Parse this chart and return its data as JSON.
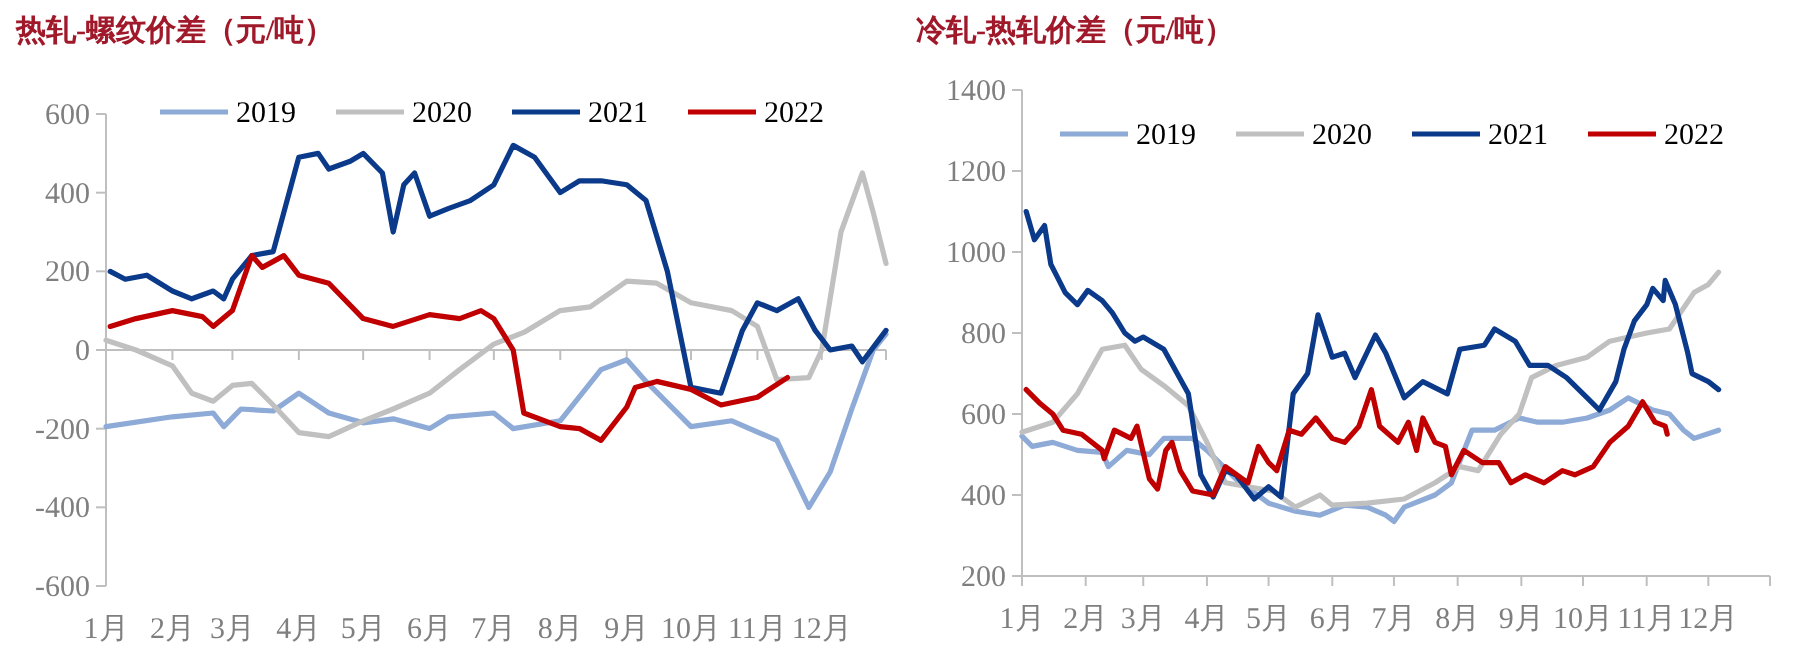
{
  "chart_data": [
    {
      "type": "line",
      "title": "热轧-螺纹价差（元/吨）",
      "legend": "top",
      "xlim": [
        "--01-01",
        "--12-31"
      ],
      "ylim": [
        -600,
        600
      ],
      "yticks": [
        -600,
        -400,
        -200,
        0,
        200,
        400,
        600
      ],
      "xticks": [
        {
          "value": "--01-01",
          "label": "1月"
        },
        {
          "value": "--02-01",
          "label": "2月"
        },
        {
          "value": "--03-01",
          "label": "3月"
        },
        {
          "value": "--04-01",
          "label": "4月"
        },
        {
          "value": "--05-01",
          "label": "5月"
        },
        {
          "value": "--06-01",
          "label": "6月"
        },
        {
          "value": "--07-01",
          "label": "7月"
        },
        {
          "value": "--08-01",
          "label": "8月"
        },
        {
          "value": "--09-01",
          "label": "9月"
        },
        {
          "value": "--10-01",
          "label": "10月"
        },
        {
          "value": "--11-01",
          "label": "11月"
        },
        {
          "value": "--12-01",
          "label": "12月"
        }
      ],
      "series": [
        {
          "name": "2019",
          "color": "#8eaad6",
          "x": [
            "--01-01",
            "--02-01",
            "--02-20",
            "--02-25",
            "--03-05",
            "--03-20",
            "--04-01",
            "--04-15",
            "--05-01",
            "--05-15",
            "--06-01",
            "--06-10",
            "--07-01",
            "--07-10",
            "--08-01",
            "--08-20",
            "--09-01",
            "--09-10",
            "--10-01",
            "--10-20",
            "--11-10",
            "--11-25",
            "--12-05",
            "--12-15",
            "--12-25",
            "--12-31"
          ],
          "values": [
            -195,
            -170,
            -160,
            -195,
            -150,
            -155,
            -110,
            -160,
            -185,
            -175,
            -200,
            -170,
            -160,
            -200,
            -180,
            -50,
            -25,
            -80,
            -195,
            -180,
            -230,
            -400,
            -310,
            -150,
            0,
            40
          ]
        },
        {
          "name": "2020",
          "color": "#c0c0c0",
          "x": [
            "--01-01",
            "--01-15",
            "--02-01",
            "--02-10",
            "--02-20",
            "--03-01",
            "--03-10",
            "--03-20",
            "--04-01",
            "--04-15",
            "--05-01",
            "--05-15",
            "--06-01",
            "--06-15",
            "--07-01",
            "--07-15",
            "--08-01",
            "--08-15",
            "--09-01",
            "--09-15",
            "--10-01",
            "--10-20",
            "--11-01",
            "--11-10",
            "--11-25",
            "--12-01",
            "--12-10",
            "--12-20",
            "--12-25",
            "--12-31"
          ],
          "values": [
            25,
            0,
            -40,
            -110,
            -130,
            -90,
            -85,
            -140,
            -210,
            -220,
            -180,
            -150,
            -110,
            -50,
            15,
            45,
            100,
            110,
            175,
            170,
            120,
            100,
            60,
            -75,
            -70,
            0,
            300,
            450,
            350,
            220
          ]
        },
        {
          "name": "2021",
          "color": "#0b3a8a",
          "x": [
            "--01-03",
            "--01-10",
            "--01-20",
            "--02-01",
            "--02-10",
            "--02-20",
            "--02-25",
            "--03-01",
            "--03-10",
            "--03-20",
            "--04-01",
            "--04-10",
            "--04-15",
            "--04-25",
            "--05-01",
            "--05-10",
            "--05-15",
            "--05-20",
            "--05-25",
            "--06-01",
            "--06-10",
            "--06-20",
            "--07-01",
            "--07-10",
            "--07-20",
            "--08-01",
            "--08-10",
            "--08-20",
            "--09-01",
            "--09-10",
            "--09-20",
            "--10-01",
            "--10-15",
            "--10-25",
            "--11-01",
            "--11-10",
            "--11-20",
            "--11-28",
            "--12-05",
            "--12-15",
            "--12-20",
            "--12-31"
          ],
          "values": [
            200,
            180,
            190,
            150,
            130,
            150,
            130,
            180,
            240,
            250,
            490,
            500,
            460,
            480,
            500,
            450,
            300,
            420,
            450,
            340,
            360,
            380,
            420,
            520,
            490,
            400,
            430,
            430,
            420,
            380,
            200,
            -95,
            -110,
            50,
            120,
            100,
            130,
            50,
            0,
            10,
            -30,
            50
          ]
        },
        {
          "name": "2022",
          "color": "#c00000",
          "x": [
            "--01-03",
            "--01-15",
            "--02-01",
            "--02-15",
            "--02-20",
            "--03-01",
            "--03-10",
            "--03-15",
            "--03-25",
            "--04-01",
            "--04-15",
            "--05-01",
            "--05-15",
            "--06-01",
            "--06-15",
            "--06-25",
            "--07-01",
            "--07-10",
            "--07-15",
            "--08-01",
            "--08-10",
            "--08-20",
            "--09-01",
            "--09-05",
            "--09-15",
            "--10-01",
            "--10-15",
            "--11-01",
            "--11-15"
          ],
          "values": [
            60,
            80,
            100,
            85,
            60,
            100,
            240,
            210,
            240,
            190,
            170,
            80,
            60,
            90,
            80,
            100,
            80,
            0,
            -160,
            -195,
            -200,
            -230,
            -145,
            -95,
            -80,
            -100,
            -140,
            -120,
            -70
          ]
        }
      ]
    },
    {
      "type": "line",
      "title": "冷轧-热轧价差（元/吨）",
      "legend": "top",
      "xlim": [
        "--01-01",
        "--12-31"
      ],
      "ylim": [
        200,
        1400
      ],
      "yticks": [
        200,
        400,
        600,
        800,
        1000,
        1200,
        1400
      ],
      "xticks": [
        {
          "value": "--01-01",
          "label": "1月"
        },
        {
          "value": "--02-01",
          "label": "2月"
        },
        {
          "value": "--03-01",
          "label": "3月"
        },
        {
          "value": "--04-01",
          "label": "4月"
        },
        {
          "value": "--05-01",
          "label": "5月"
        },
        {
          "value": "--06-01",
          "label": "6月"
        },
        {
          "value": "--07-01",
          "label": "7月"
        },
        {
          "value": "--08-01",
          "label": "8月"
        },
        {
          "value": "--09-01",
          "label": "9月"
        },
        {
          "value": "--10-01",
          "label": "10月"
        },
        {
          "value": "--11-01",
          "label": "11月"
        },
        {
          "value": "--12-01",
          "label": "12月"
        }
      ],
      "series": [
        {
          "name": "2019",
          "color": "#8eaad6",
          "x": [
            "--01-01",
            "--01-06",
            "--01-16",
            "--01-28",
            "--02-09",
            "--02-12",
            "--02-21",
            "--03-04",
            "--03-11",
            "--03-25",
            "--04-01",
            "--04-15",
            "--05-01",
            "--05-14",
            "--05-26",
            "--06-07",
            "--06-18",
            "--06-27",
            "--07-01",
            "--07-06",
            "--07-21",
            "--07-29",
            "--08-08",
            "--08-19",
            "--08-31",
            "--09-09",
            "--09-21",
            "--10-03",
            "--10-14",
            "--10-23",
            "--11-04",
            "--11-12",
            "--11-19",
            "--11-24",
            "--12-06"
          ],
          "values": [
            545,
            520,
            530,
            510,
            505,
            470,
            510,
            500,
            540,
            540,
            510,
            440,
            380,
            360,
            350,
            375,
            370,
            350,
            335,
            370,
            400,
            430,
            560,
            560,
            590,
            580,
            580,
            590,
            610,
            640,
            610,
            600,
            560,
            540,
            560
          ]
        },
        {
          "name": "2020",
          "color": "#c0c0c0",
          "x": [
            "--01-01",
            "--01-16",
            "--01-28",
            "--02-09",
            "--02-20",
            "--02-28",
            "--03-11",
            "--03-23",
            "--04-01",
            "--04-10",
            "--04-21",
            "--05-03",
            "--05-14",
            "--05-26",
            "--06-01",
            "--06-18",
            "--07-06",
            "--07-21",
            "--08-02",
            "--08-11",
            "--08-22",
            "--08-31",
            "--09-06",
            "--09-18",
            "--10-03",
            "--10-14",
            "--11-01",
            "--11-12",
            "--11-24",
            "--12-01",
            "--12-06"
          ],
          "values": [
            555,
            580,
            650,
            760,
            770,
            710,
            670,
            620,
            530,
            430,
            420,
            410,
            370,
            400,
            375,
            380,
            390,
            430,
            470,
            460,
            550,
            600,
            690,
            720,
            740,
            780,
            800,
            810,
            900,
            920,
            950
          ]
        },
        {
          "name": "2021",
          "color": "#0b3a8a",
          "x": [
            "--01-03",
            "--01-07",
            "--01-12",
            "--01-15",
            "--01-18",
            "--01-22",
            "--01-28",
            "--02-02",
            "--02-09",
            "--02-14",
            "--02-20",
            "--02-25",
            "--03-01",
            "--03-11",
            "--03-23",
            "--03-29",
            "--04-04",
            "--04-10",
            "--04-15",
            "--04-24",
            "--05-01",
            "--05-07",
            "--05-13",
            "--05-20",
            "--05-25",
            "--06-01",
            "--06-07",
            "--06-12",
            "--06-22",
            "--06-27",
            "--07-06",
            "--07-15",
            "--07-27",
            "--08-02",
            "--08-14",
            "--08-19",
            "--08-29",
            "--09-05",
            "--09-14",
            "--09-23",
            "--10-03",
            "--10-09",
            "--10-17",
            "--10-21",
            "--10-26",
            "--11-01",
            "--11-04",
            "--11-09",
            "--11-10",
            "--11-15",
            "--11-21",
            "--11-23",
            "--12-01",
            "--12-06"
          ],
          "values": [
            1100,
            1030,
            1065,
            970,
            940,
            900,
            870,
            905,
            880,
            850,
            800,
            780,
            790,
            760,
            650,
            450,
            395,
            460,
            450,
            390,
            420,
            395,
            650,
            700,
            845,
            740,
            750,
            690,
            795,
            750,
            640,
            680,
            650,
            760,
            770,
            810,
            780,
            720,
            720,
            690,
            640,
            610,
            680,
            760,
            830,
            870,
            910,
            880,
            930,
            870,
            750,
            700,
            680,
            660
          ]
        },
        {
          "name": "2022",
          "color": "#c00000",
          "x": [
            "--01-03",
            "--01-10",
            "--01-16",
            "--01-21",
            "--01-30",
            "--02-09",
            "--02-10",
            "--02-15",
            "--02-23",
            "--02-26",
            "--03-04",
            "--03-08",
            "--03-12",
            "--03-15",
            "--03-19",
            "--03-25",
            "--04-04",
            "--04-10",
            "--04-21",
            "--04-26",
            "--05-01",
            "--05-05",
            "--05-11",
            "--05-17",
            "--05-24",
            "--06-01",
            "--06-07",
            "--06-14",
            "--06-20",
            "--06-24",
            "--07-03",
            "--07-08",
            "--07-12",
            "--07-15",
            "--07-21",
            "--07-26",
            "--07-29",
            "--08-04",
            "--08-13",
            "--08-21",
            "--08-27",
            "--09-03",
            "--09-12",
            "--09-21",
            "--09-27",
            "--10-06",
            "--10-14",
            "--10-23",
            "--10-30",
            "--11-05",
            "--11-10",
            "--11-11"
          ],
          "values": [
            660,
            625,
            600,
            560,
            550,
            510,
            490,
            560,
            540,
            570,
            440,
            415,
            510,
            530,
            460,
            410,
            400,
            470,
            430,
            520,
            480,
            460,
            560,
            550,
            590,
            540,
            530,
            570,
            660,
            570,
            530,
            580,
            510,
            590,
            530,
            520,
            450,
            510,
            480,
            480,
            430,
            450,
            430,
            460,
            450,
            470,
            530,
            570,
            630,
            580,
            570,
            550
          ]
        }
      ]
    }
  ]
}
